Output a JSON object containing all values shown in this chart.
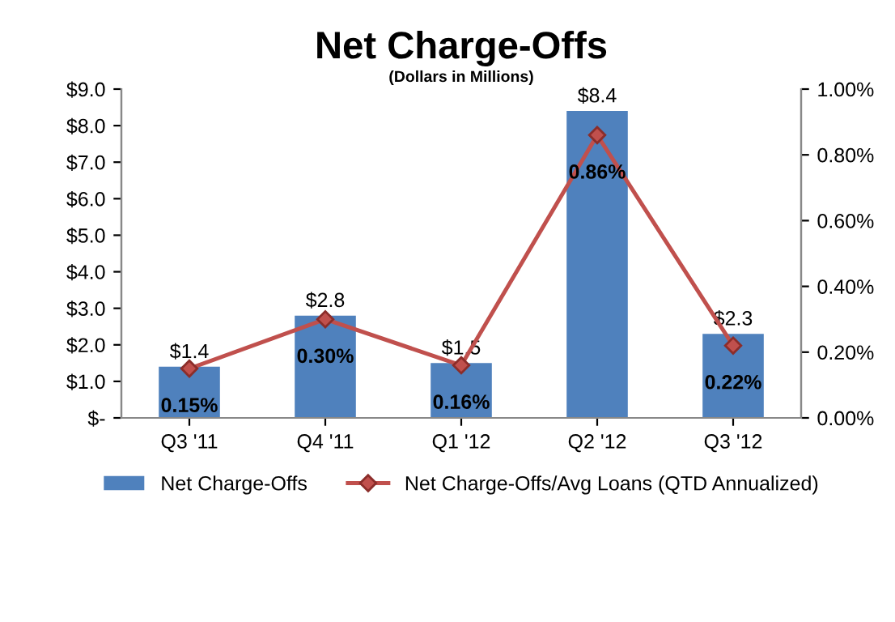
{
  "chart_data": {
    "type": "bar",
    "title": "Net Charge-Offs",
    "subtitle": "(Dollars in Millions)",
    "categories": [
      "Q3 '11",
      "Q4 '11",
      "Q1 '12",
      "Q2 '12",
      "Q3 '12"
    ],
    "series": [
      {
        "name": "Net Charge-Offs",
        "color": "#4f81bd",
        "values": [
          1.4,
          2.8,
          1.5,
          8.4,
          2.3
        ],
        "value_labels": [
          "$1.4",
          "$2.8",
          "$1.5",
          "$8.4",
          "$2.3"
        ]
      },
      {
        "name": "Net Charge-Offs/Avg Loans (QTD Annualized)",
        "type": "line",
        "axis": "y2",
        "color": "#c0504d",
        "marker": "diamond",
        "values": [
          0.15,
          0.3,
          0.16,
          0.86,
          0.22
        ],
        "value_labels": [
          "0.15%",
          "0.30%",
          "0.16%",
          "0.86%",
          "0.22%"
        ]
      }
    ],
    "ylim": [
      0,
      9
    ],
    "yticks": [
      {
        "value": 0,
        "label": "$-"
      },
      {
        "value": 1,
        "label": "$1.0"
      },
      {
        "value": 2,
        "label": "$2.0"
      },
      {
        "value": 3,
        "label": "$3.0"
      },
      {
        "value": 4,
        "label": "$4.0"
      },
      {
        "value": 5,
        "label": "$5.0"
      },
      {
        "value": 6,
        "label": "$6.0"
      },
      {
        "value": 7,
        "label": "$7.0"
      },
      {
        "value": 8,
        "label": "$8.0"
      },
      {
        "value": 9,
        "label": "$9.0"
      }
    ],
    "y2lim": [
      0,
      1
    ],
    "y2ticks": [
      {
        "value": 0,
        "label": "0.00%"
      },
      {
        "value": 0.2,
        "label": "0.20%"
      },
      {
        "value": 0.4,
        "label": "0.40%"
      },
      {
        "value": 0.6,
        "label": "0.60%"
      },
      {
        "value": 0.8,
        "label": "0.80%"
      },
      {
        "value": 1.0,
        "label": "1.00%"
      }
    ],
    "grid": false,
    "legend": "bottom"
  }
}
